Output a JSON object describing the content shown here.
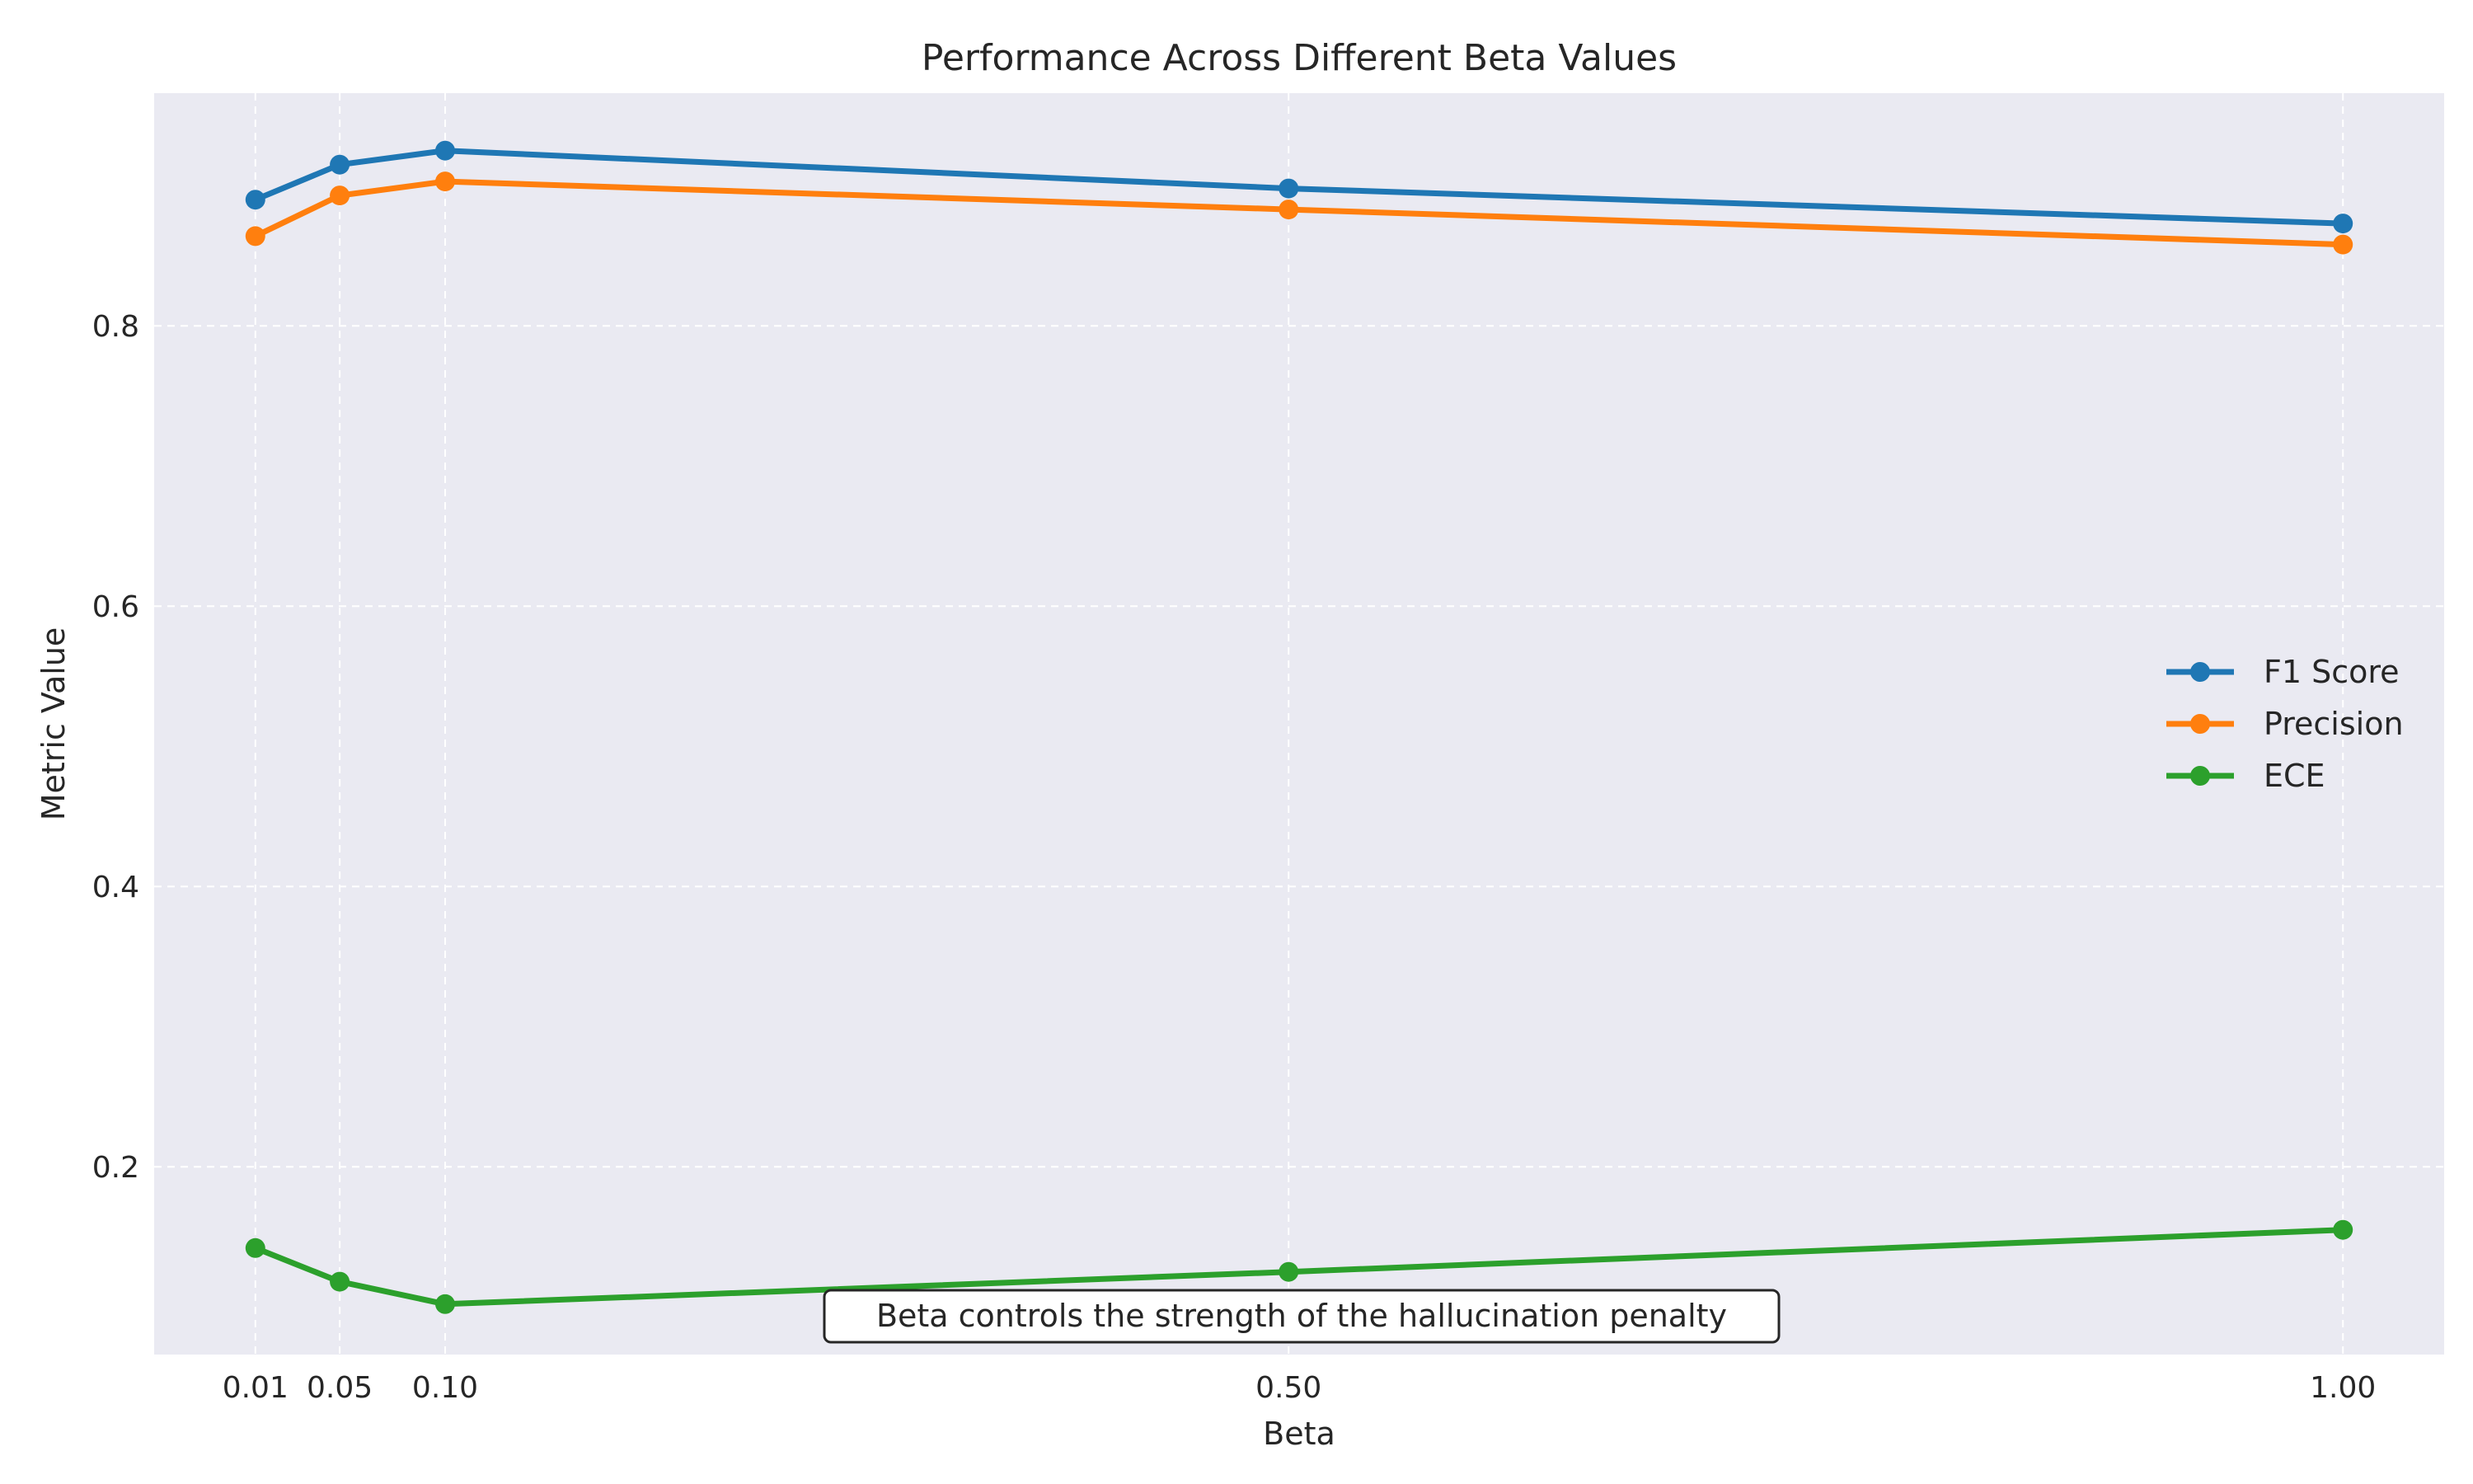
{
  "chart_data": {
    "type": "line",
    "title": "Performance Across Different Beta Values",
    "xlabel": "Beta",
    "ylabel": "Metric Value",
    "x": [
      0.01,
      0.05,
      0.1,
      0.5,
      1.0
    ],
    "x_tick_labels": [
      "0.01",
      "0.05",
      "0.10",
      "0.50",
      "1.00"
    ],
    "y_ticks": [
      0.2,
      0.4,
      0.6,
      0.8
    ],
    "y_tick_labels": [
      "0.2",
      "0.4",
      "0.6",
      "0.8"
    ],
    "xlim": [
      -0.038,
      1.048
    ],
    "ylim": [
      0.066,
      0.966
    ],
    "grid": true,
    "legend_position": "center-right",
    "series": [
      {
        "name": "F1 Score",
        "color": "#1f77b4",
        "values": [
          0.89,
          0.915,
          0.925,
          0.898,
          0.873
        ]
      },
      {
        "name": "Precision",
        "color": "#ff7f0e",
        "values": [
          0.864,
          0.893,
          0.903,
          0.883,
          0.858
        ]
      },
      {
        "name": "ECE",
        "color": "#2ca02c",
        "values": [
          0.142,
          0.118,
          0.102,
          0.125,
          0.155
        ]
      }
    ],
    "annotation": "Beta controls the strength of the hallucination penalty"
  }
}
